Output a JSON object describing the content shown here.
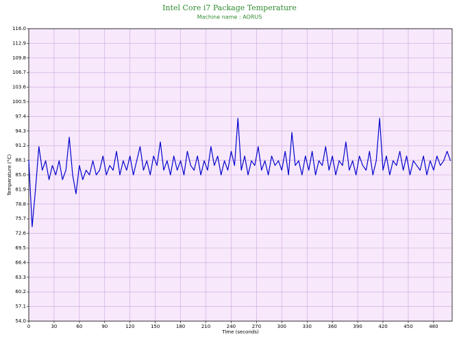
{
  "chart_data": {
    "type": "line",
    "title": "Intel Core i7 Package Temperature",
    "subtitle": "Machine name : AORUS",
    "xlabel": "Time (seconds)",
    "ylabel": "Temperature (°C)",
    "xlim": [
      0,
      502
    ],
    "xticks": [
      0,
      30,
      60,
      90,
      120,
      150,
      180,
      210,
      240,
      270,
      300,
      330,
      360,
      390,
      420,
      450,
      480
    ],
    "ylim": [
      54,
      116
    ],
    "yticks": [
      {
        "value": 54,
        "label": "54.0"
      },
      57.1,
      60.2,
      63.3,
      66.4,
      69.5,
      72.6,
      75.7,
      78.8,
      81.9,
      {
        "value": 85,
        "label": "85.0"
      },
      88.1,
      91.2,
      94.3,
      97.4,
      100.5,
      103.6,
      106.7,
      109.8,
      112.9,
      {
        "value": 116,
        "label": "116.0"
      }
    ],
    "grid": true,
    "series": [
      {
        "color": "#0000cc",
        "x": [
          0,
          4,
          8,
          12,
          16,
          20,
          24,
          28,
          32,
          36,
          40,
          44,
          48,
          52,
          56,
          60,
          64,
          68,
          72,
          76,
          80,
          84,
          88,
          92,
          96,
          100,
          104,
          108,
          112,
          116,
          120,
          124,
          128,
          132,
          136,
          140,
          144,
          148,
          152,
          156,
          160,
          164,
          168,
          172,
          176,
          180,
          184,
          188,
          192,
          196,
          200,
          204,
          208,
          212,
          216,
          220,
          224,
          228,
          232,
          236,
          240,
          244,
          248,
          252,
          256,
          260,
          264,
          268,
          272,
          276,
          280,
          284,
          288,
          292,
          296,
          300,
          304,
          308,
          312,
          316,
          320,
          324,
          328,
          332,
          336,
          340,
          344,
          348,
          352,
          356,
          360,
          364,
          368,
          372,
          376,
          380,
          384,
          388,
          392,
          396,
          400,
          404,
          408,
          412,
          416,
          420,
          424,
          428,
          432,
          436,
          440,
          444,
          448,
          452,
          456,
          460,
          464,
          468,
          472,
          476,
          480,
          484,
          488,
          492,
          496,
          500
        ],
        "values": [
          88.1,
          74,
          82,
          91,
          86,
          88,
          84,
          87,
          85,
          88,
          84,
          86,
          93,
          85,
          81,
          87,
          84,
          86,
          85,
          88,
          85,
          86,
          89,
          85,
          87,
          86,
          90,
          85,
          88,
          86,
          89,
          85,
          88,
          91,
          86,
          88,
          85,
          89,
          87,
          92,
          86,
          88,
          85,
          89,
          86,
          88,
          85,
          90,
          87,
          86,
          89,
          85,
          88,
          86,
          91,
          87,
          89,
          85,
          88,
          86,
          90,
          87,
          97,
          86,
          89,
          85,
          88,
          87,
          91,
          86,
          88,
          85,
          89,
          87,
          88,
          86,
          90,
          85,
          94,
          87,
          88,
          85,
          89,
          86,
          90,
          85,
          88,
          87,
          91,
          86,
          89,
          85,
          88,
          87,
          92,
          86,
          88,
          85,
          89,
          87,
          86,
          90,
          85,
          88,
          97,
          86,
          89,
          85,
          88,
          87,
          90,
          86,
          89,
          85,
          88,
          87,
          86,
          89,
          85,
          88,
          86,
          89,
          87,
          88,
          90,
          88
        ]
      }
    ]
  }
}
